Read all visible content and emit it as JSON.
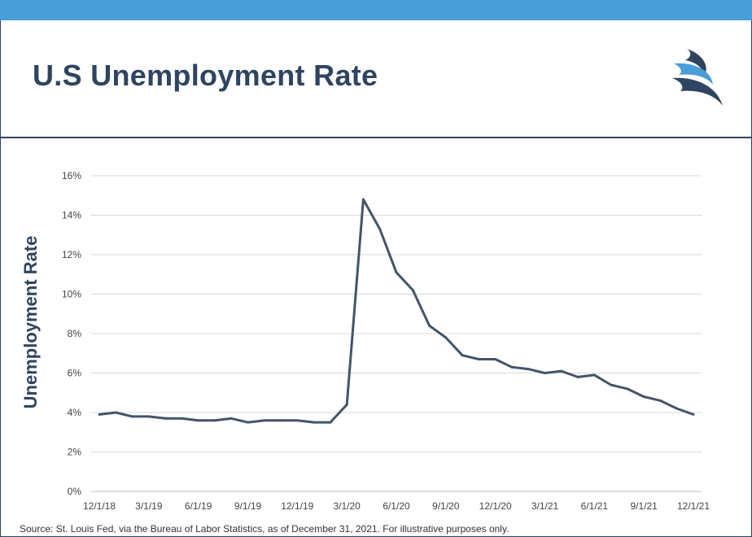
{
  "header": {
    "title": "U.S Unemployment Rate",
    "logo_icon": "wave-logo-icon",
    "bar_color": "#4a9fd9",
    "text_color": "#2e4460"
  },
  "chart_data": {
    "type": "line",
    "ylabel": "Unemployment Rate",
    "xlabel": "",
    "ylim": [
      0,
      16
    ],
    "y_ticks": [
      "0%",
      "2%",
      "4%",
      "6%",
      "8%",
      "10%",
      "12%",
      "14%",
      "16%"
    ],
    "x_ticks": [
      "12/1/18",
      "3/1/19",
      "6/1/19",
      "9/1/19",
      "12/1/19",
      "3/1/20",
      "6/1/20",
      "9/1/20",
      "12/1/20",
      "3/1/21",
      "6/1/21",
      "9/1/21",
      "12/1/21"
    ],
    "x": [
      "12/1/18",
      "1/1/19",
      "2/1/19",
      "3/1/19",
      "4/1/19",
      "5/1/19",
      "6/1/19",
      "7/1/19",
      "8/1/19",
      "9/1/19",
      "10/1/19",
      "11/1/19",
      "12/1/19",
      "1/1/20",
      "2/1/20",
      "3/1/20",
      "4/1/20",
      "5/1/20",
      "6/1/20",
      "7/1/20",
      "8/1/20",
      "9/1/20",
      "10/1/20",
      "11/1/20",
      "12/1/20",
      "1/1/21",
      "2/1/21",
      "3/1/21",
      "4/1/21",
      "5/1/21",
      "6/1/21",
      "7/1/21",
      "8/1/21",
      "9/1/21",
      "10/1/21",
      "11/1/21",
      "12/1/21"
    ],
    "series": [
      {
        "values": [
          3.9,
          4.0,
          3.8,
          3.8,
          3.7,
          3.7,
          3.6,
          3.6,
          3.7,
          3.5,
          3.6,
          3.6,
          3.6,
          3.5,
          3.5,
          4.4,
          14.8,
          13.3,
          11.1,
          10.2,
          8.4,
          7.8,
          6.9,
          6.7,
          6.7,
          6.3,
          6.2,
          6.0,
          6.1,
          5.8,
          5.9,
          5.4,
          5.2,
          4.8,
          4.6,
          4.2,
          3.9
        ]
      }
    ],
    "grid": true,
    "legend": "none",
    "line_color": "#44546a"
  },
  "footer": {
    "source": "Source: St. Louis Fed, via the Bureau of Labor Statistics, as of December 31, 2021. For illustrative purposes only."
  }
}
